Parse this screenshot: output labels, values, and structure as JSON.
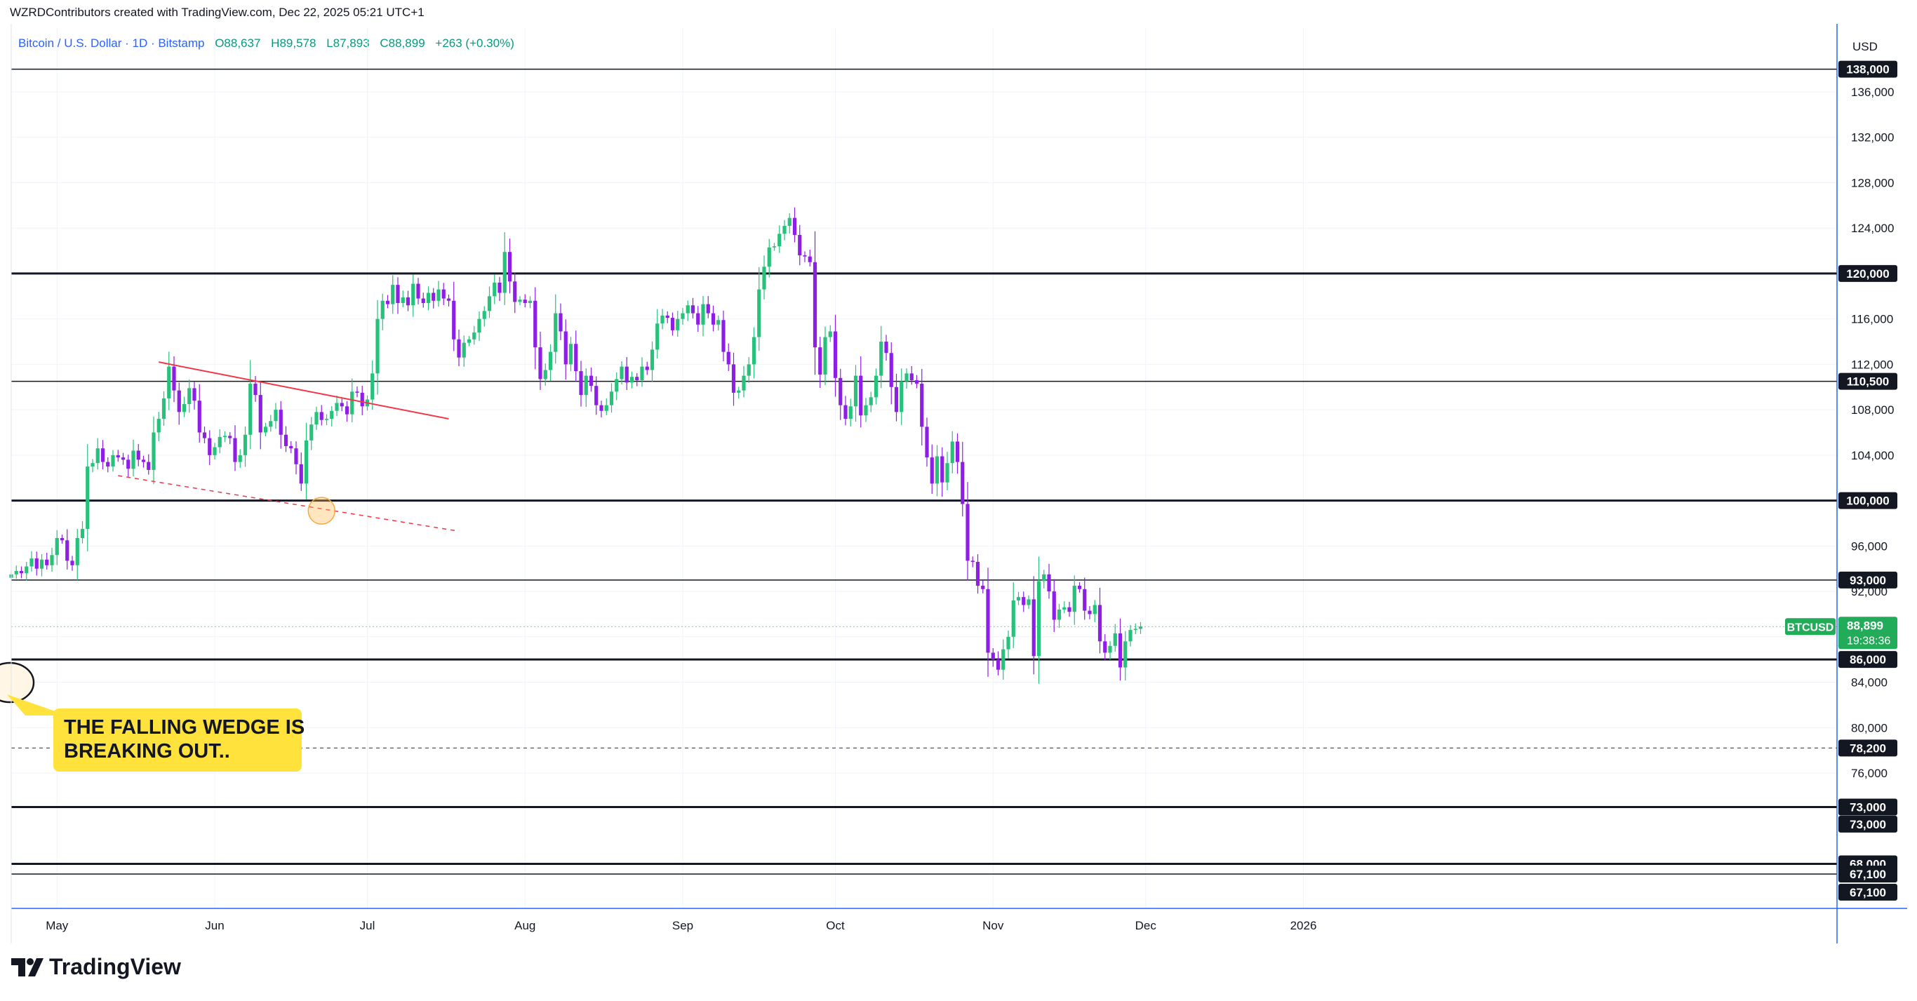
{
  "header": {
    "credit": "WZRDContributors created with TradingView.com, Dec 22, 2025 05:21 UTC+1"
  },
  "legend": {
    "symbol": "Bitcoin / U.S. Dollar · 1D · Bitstamp",
    "open": "O88,637",
    "high": "H89,578",
    "low": "L87,893",
    "close": "C88,899",
    "change": "+263 (+0.30%)"
  },
  "brand": {
    "name": "TradingView"
  },
  "colors": {
    "up": "#26c17a",
    "down": "#8e1ee6",
    "trendline": "#f23645",
    "annotation": "#ffe23b",
    "price_label": "#22ab58"
  },
  "chart_data": {
    "type": "candlestick",
    "currency": "USD",
    "ylim": [
      66400,
      139000
    ],
    "y_ticks": [
      76000,
      80000,
      84000,
      88000,
      92000,
      96000,
      104000,
      108000,
      112000,
      116000,
      124000,
      128000,
      132000,
      136000
    ],
    "y_tick_labels": [
      "76,000",
      "80,000",
      "84,000",
      "88,000",
      "92,000",
      "96,000",
      "104,000",
      "108,000",
      "112,000",
      "116,000",
      "124,000",
      "128,000",
      "132,000",
      "136,000"
    ],
    "x_ticks": [
      {
        "label": "May",
        "date": "2025-05-01"
      },
      {
        "label": "Jun",
        "date": "2025-06-01"
      },
      {
        "label": "Jul",
        "date": "2025-07-01"
      },
      {
        "label": "Aug",
        "date": "2025-08-01"
      },
      {
        "label": "Sep",
        "date": "2025-09-01"
      },
      {
        "label": "Oct",
        "date": "2025-10-01"
      },
      {
        "label": "Nov",
        "date": "2025-11-01"
      },
      {
        "label": "Dec",
        "date": "2025-12-01"
      },
      {
        "label": "2026",
        "date": "2026-01-01"
      }
    ],
    "start_date": "2025-04-22",
    "closes": [
      93500,
      93800,
      93600,
      94200,
      94900,
      94000,
      94800,
      94300,
      95200,
      96700,
      96500,
      94700,
      94300,
      96700,
      97500,
      103000,
      103300,
      104600,
      103400,
      103000,
      104000,
      103800,
      103600,
      102800,
      104400,
      103600,
      103400,
      102700,
      106000,
      107200,
      109000,
      111800,
      109700,
      107800,
      108500,
      109900,
      108800,
      106000,
      105500,
      104000,
      104700,
      105600,
      105700,
      105500,
      103400,
      104000,
      105800,
      110300,
      109300,
      106000,
      106500,
      107000,
      108000,
      105800,
      104800,
      104600,
      103200,
      101500,
      105300,
      106700,
      107800,
      107100,
      107200,
      107900,
      108600,
      108300,
      107600,
      109600,
      109500,
      108300,
      108900,
      111200,
      116000,
      117600,
      117300,
      119000,
      117400,
      117900,
      117200,
      119100,
      117800,
      117400,
      118300,
      117600,
      118600,
      117800,
      117600,
      114200,
      112600,
      113900,
      114200,
      114800,
      116000,
      116700,
      118000,
      119200,
      118300,
      121900,
      119300,
      117500,
      117700,
      117400,
      117600,
      113500,
      110700,
      111500,
      113100,
      116500,
      114900,
      112000,
      113800,
      111400,
      109300,
      111000,
      110100,
      108400,
      107900,
      108400,
      109600,
      110700,
      111800,
      110400,
      110900,
      110600,
      111800,
      111500,
      113300,
      115600,
      116300,
      116100,
      115000,
      116000,
      116500,
      117200,
      116500,
      115500,
      117300,
      116500,
      115500,
      115900,
      113100,
      112000,
      109500,
      109700,
      111000,
      112000,
      114400,
      118600,
      120600,
      122300,
      122400,
      123500,
      124200,
      124900,
      123400,
      121600,
      121500,
      121000,
      113500,
      111100,
      114400,
      114900,
      110800,
      108400,
      107200,
      108300,
      111000,
      107500,
      108400,
      109100,
      111000,
      114000,
      113000,
      110000,
      107800,
      110500,
      111200,
      110600,
      110300,
      106500,
      103800,
      101500,
      103900,
      101600,
      103300,
      105200,
      103400,
      99700,
      94700,
      94600,
      92500,
      92200,
      86600,
      86000,
      85100,
      86900,
      88000,
      91200,
      91500,
      90800,
      91300,
      86300,
      92900,
      93500,
      92000,
      89500,
      90400,
      90600,
      90200,
      92500,
      92200,
      90300,
      90000,
      90800,
      87600,
      86600,
      87200,
      88300,
      85300,
      87600,
      88600,
      88700,
      88899
    ],
    "price_levels": [
      {
        "label": "138,000",
        "value": 138000,
        "style": "solid-thin"
      },
      {
        "label": "120,000",
        "value": 120000,
        "style": "solid-thick"
      },
      {
        "label": "110,500",
        "value": 110500,
        "style": "solid-thin"
      },
      {
        "label": "100,000",
        "value": 100000,
        "style": "solid-thick"
      },
      {
        "label": "93,000",
        "value": 93000,
        "style": "solid-thin"
      },
      {
        "label": "86,000",
        "value": 86000,
        "style": "solid-thick"
      },
      {
        "label": "78,200",
        "value": 78200,
        "style": "dashed"
      },
      {
        "label": "73,000",
        "value": 73000,
        "style": "solid-thick"
      },
      {
        "label": "73,000",
        "value": 71500,
        "style": "none"
      },
      {
        "label": "68,000",
        "value": 68000,
        "style": "solid-thick"
      },
      {
        "label": "67,100",
        "value": 67100,
        "style": "solid-thin"
      },
      {
        "label": "67,100",
        "value": 65500,
        "style": "none"
      }
    ],
    "last_price": {
      "ticker": "BTCUSD",
      "price": "88,899",
      "value": 88899,
      "countdown": "19:38:36"
    },
    "wedge": {
      "upper": [
        {
          "date": "2025-05-21",
          "price": 112200
        },
        {
          "date": "2025-07-17",
          "price": 107200
        }
      ],
      "lower": [
        {
          "date": "2025-05-13",
          "price": 102200
        },
        {
          "date": "2025-07-19",
          "price": 97300
        }
      ],
      "touch": {
        "date": "2025-06-22",
        "price": 99100
      }
    },
    "annotation": {
      "text_line1": "THE FALLING WEDGE IS",
      "text_line2": "BREAKING OUT.."
    }
  }
}
